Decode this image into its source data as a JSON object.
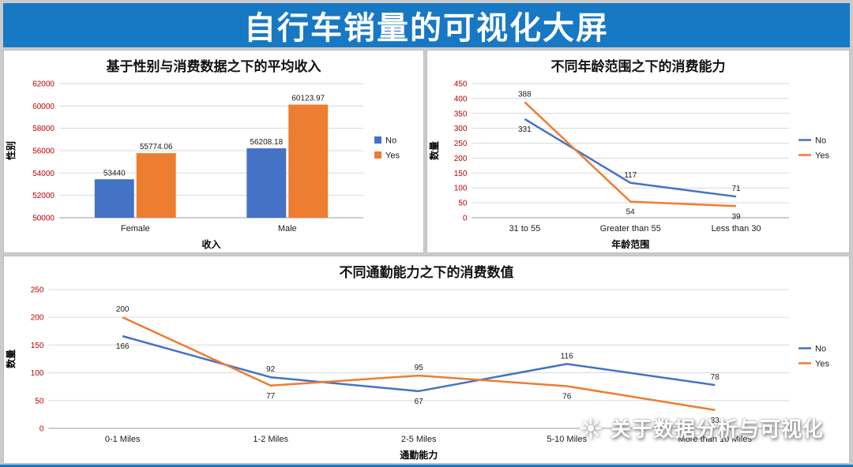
{
  "banner": {
    "title": "自行车销量的可视化大屏",
    "bg_color": "#1778C4",
    "text_color": "#FFFFFF"
  },
  "watermark": {
    "text": "关于数据分析与可视化",
    "icon": "aperture-icon"
  },
  "colors": {
    "series_no": "#4472C4",
    "series_yes": "#ED7D31",
    "axis_tick": "#C00000",
    "page_bg": "#CBCBCB",
    "panel_bg": "#FFFFFF"
  },
  "chart_data": [
    {
      "type": "bar",
      "title": "基于性别与消费数据之下的平均收入",
      "xlabel": "收入",
      "ylabel": "性别",
      "categories": [
        "Female",
        "Male"
      ],
      "series": [
        {
          "name": "No",
          "color": "#4472C4",
          "values": [
            53440,
            56208.18
          ]
        },
        {
          "name": "Yes",
          "color": "#ED7D31",
          "values": [
            55774.06,
            60123.97
          ]
        }
      ],
      "ylim": [
        50000,
        62000
      ],
      "ystep": 2000,
      "grid": true,
      "legend_position": "right",
      "tick_color": "#C00000"
    },
    {
      "type": "line",
      "title": "不同年龄范围之下的消费能力",
      "xlabel": "年龄范围",
      "ylabel": "数量",
      "categories": [
        "31 to 55",
        "Greater than 55",
        "Less than 30"
      ],
      "series": [
        {
          "name": "No",
          "color": "#4472C4",
          "values": [
            331,
            117,
            71
          ]
        },
        {
          "name": "Yes",
          "color": "#ED7D31",
          "values": [
            388,
            54,
            39
          ]
        }
      ],
      "ylim": [
        0,
        450
      ],
      "ystep": 50,
      "grid": true,
      "legend_position": "right",
      "tick_color": "#C00000"
    },
    {
      "type": "line",
      "title": "不同通勤能力之下的消费数值",
      "xlabel": "通勤能力",
      "ylabel": "数量",
      "categories": [
        "0-1 Miles",
        "1-2 Miles",
        "2-5 Miles",
        "5-10 Miles",
        "More than 10 Miles"
      ],
      "series": [
        {
          "name": "No",
          "color": "#4472C4",
          "values": [
            166,
            92,
            67,
            116,
            78
          ]
        },
        {
          "name": "Yes",
          "color": "#ED7D31",
          "values": [
            200,
            77,
            95,
            76,
            33
          ]
        }
      ],
      "ylim": [
        0,
        250
      ],
      "ystep": 50,
      "grid": true,
      "legend_position": "right",
      "tick_color": "#C00000"
    }
  ]
}
